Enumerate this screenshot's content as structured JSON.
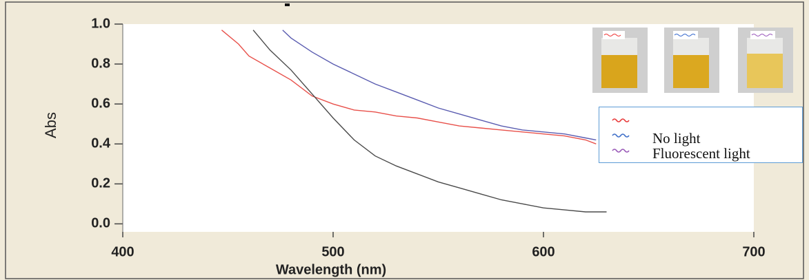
{
  "chart_data": {
    "type": "line",
    "x_label": "Wavelength (nm)",
    "y_label": "Abs",
    "xlim": [
      400,
      700
    ],
    "ylim": [
      -0.04,
      1.0
    ],
    "xticks": [
      400,
      500,
      600,
      700
    ],
    "yticks": [
      {
        "value": 0,
        "label": "0.0"
      },
      {
        "value": 0.2,
        "label": "0.2"
      },
      {
        "value": 0.4,
        "label": "0.4"
      },
      {
        "value": 0.6,
        "label": "0.6"
      },
      {
        "value": 0.8,
        "label": "0.8"
      },
      {
        "value": 1,
        "label": "1.0"
      }
    ],
    "series": [
      {
        "name": null,
        "color": "#e8504a",
        "legend_color": "#e83a3a",
        "x": [
          447,
          455,
          460,
          470,
          480,
          490,
          500,
          510,
          520,
          530,
          540,
          550,
          560,
          570,
          580,
          590,
          600,
          610,
          620,
          625
        ],
        "values": [
          0.97,
          0.9,
          0.84,
          0.78,
          0.72,
          0.64,
          0.6,
          0.57,
          0.56,
          0.54,
          0.53,
          0.51,
          0.49,
          0.48,
          0.47,
          0.46,
          0.45,
          0.44,
          0.42,
          0.4
        ]
      },
      {
        "name": "No light",
        "color": "#5a5cb0",
        "legend_color": "#3f6fc8",
        "x": [
          476,
          480,
          490,
          500,
          510,
          520,
          530,
          540,
          550,
          560,
          570,
          580,
          590,
          600,
          610,
          620,
          625
        ],
        "values": [
          0.97,
          0.93,
          0.86,
          0.8,
          0.75,
          0.7,
          0.66,
          0.62,
          0.58,
          0.55,
          0.52,
          0.49,
          0.47,
          0.46,
          0.45,
          0.43,
          0.42
        ]
      },
      {
        "name": "Fluorescent light",
        "color": "#4a4a4a",
        "legend_color": "#9a5ab8",
        "x": [
          462,
          470,
          480,
          490,
          500,
          510,
          520,
          530,
          540,
          550,
          560,
          570,
          580,
          590,
          600,
          610,
          620,
          630
        ],
        "values": [
          0.97,
          0.87,
          0.77,
          0.65,
          0.53,
          0.42,
          0.34,
          0.29,
          0.25,
          0.21,
          0.18,
          0.15,
          0.12,
          0.1,
          0.08,
          0.07,
          0.06,
          0.06
        ]
      }
    ]
  }
}
